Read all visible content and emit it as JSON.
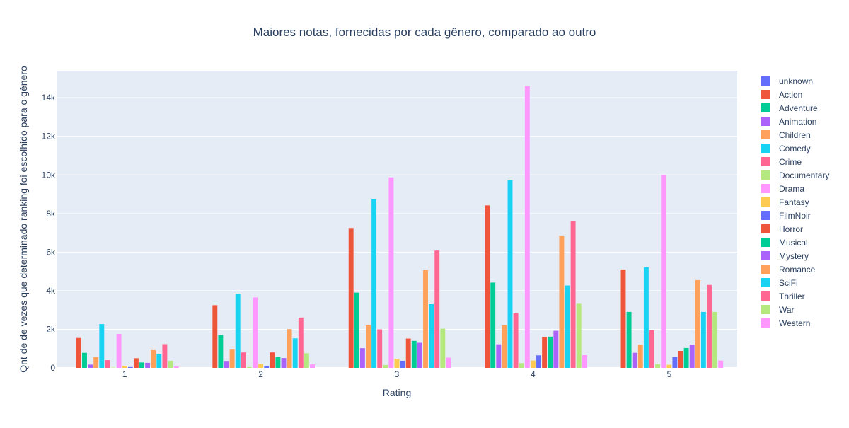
{
  "chart_data": {
    "type": "bar",
    "title": "Maiores notas, fornecidas por cada gênero, comparado ao outro",
    "xlabel": "Rating",
    "ylabel": "Qnt de de vezes que determinado ranking foi escolhido para o gênero",
    "categories": [
      "1",
      "2",
      "3",
      "4",
      "5"
    ],
    "ylim": [
      0,
      15400
    ],
    "yticks": [
      0,
      2000,
      4000,
      6000,
      8000,
      10000,
      12000,
      14000
    ],
    "ytick_labels": [
      "0",
      "2k",
      "4k",
      "6k",
      "8k",
      "10k",
      "12k",
      "14k"
    ],
    "grid": true,
    "legend_position": "right",
    "series": [
      {
        "name": "unknown",
        "color": "#636efa",
        "values": [
          0,
          0,
          0,
          0,
          0
        ]
      },
      {
        "name": "Action",
        "color": "#EF553B",
        "values": [
          1550,
          3250,
          7250,
          8420,
          5100
        ]
      },
      {
        "name": "Adventure",
        "color": "#00cc96",
        "values": [
          780,
          1700,
          3900,
          4420,
          2900
        ]
      },
      {
        "name": "Animation",
        "color": "#ab63fa",
        "values": [
          170,
          360,
          1020,
          1220,
          780
        ]
      },
      {
        "name": "Children",
        "color": "#FFA15A",
        "values": [
          560,
          950,
          2200,
          2200,
          1200
        ]
      },
      {
        "name": "Comedy",
        "color": "#19d3f3",
        "values": [
          2270,
          3850,
          8750,
          9720,
          5220
        ]
      },
      {
        "name": "Crime",
        "color": "#FF6692",
        "values": [
          400,
          800,
          2000,
          2830,
          1960
        ]
      },
      {
        "name": "Documentary",
        "color": "#B6E880",
        "values": [
          20,
          40,
          150,
          250,
          190
        ]
      },
      {
        "name": "Drama",
        "color": "#FF97FF",
        "values": [
          1760,
          3650,
          9870,
          14600,
          9990
        ]
      },
      {
        "name": "Fantasy",
        "color": "#FECB52",
        "values": [
          100,
          200,
          470,
          380,
          160
        ]
      },
      {
        "name": "FilmNoir",
        "color": "#636efa",
        "values": [
          40,
          90,
          370,
          650,
          560
        ]
      },
      {
        "name": "Horror",
        "color": "#EF553B",
        "values": [
          500,
          800,
          1520,
          1600,
          880
        ]
      },
      {
        "name": "Musical",
        "color": "#00cc96",
        "values": [
          280,
          570,
          1400,
          1620,
          1030
        ]
      },
      {
        "name": "Mystery",
        "color": "#ab63fa",
        "values": [
          260,
          510,
          1300,
          1920,
          1210
        ]
      },
      {
        "name": "Romance",
        "color": "#FFA15A",
        "values": [
          920,
          2010,
          5060,
          6860,
          4550
        ]
      },
      {
        "name": "SciFi",
        "color": "#19d3f3",
        "values": [
          700,
          1530,
          3300,
          4270,
          2900
        ]
      },
      {
        "name": "Thriller",
        "color": "#FF6692",
        "values": [
          1230,
          2610,
          6080,
          7620,
          4300
        ]
      },
      {
        "name": "War",
        "color": "#B6E880",
        "values": [
          370,
          760,
          2030,
          3320,
          2900
        ]
      },
      {
        "name": "Western",
        "color": "#FF97FF",
        "values": [
          70,
          180,
          530,
          660,
          380
        ]
      }
    ]
  }
}
